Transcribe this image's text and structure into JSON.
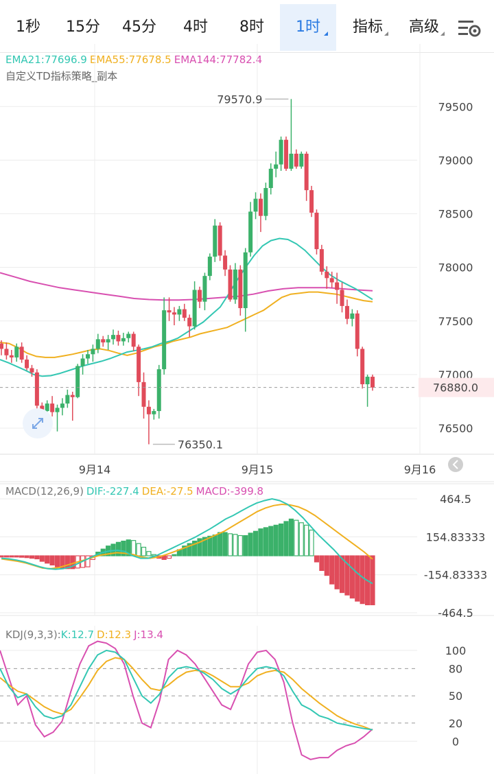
{
  "tabs": [
    {
      "label": "1秒",
      "active": false,
      "dropdown": false
    },
    {
      "label": "15分",
      "active": false,
      "dropdown": false
    },
    {
      "label": "45分",
      "active": false,
      "dropdown": false
    },
    {
      "label": "4时",
      "active": false,
      "dropdown": false
    },
    {
      "label": "8时",
      "active": false,
      "dropdown": false
    },
    {
      "label": "1时",
      "active": true,
      "dropdown": true
    },
    {
      "label": "指标",
      "active": false,
      "dropdown": true
    },
    {
      "label": "高级",
      "active": false,
      "dropdown": true
    }
  ],
  "settings_icon": "settings-sliders-icon",
  "main_legend": {
    "ema21": "EMA21:77696.9",
    "ema55": "EMA55:77678.5",
    "ema144": "EMA144:77782.4",
    "strategy": "自定义TD指标策略_副本"
  },
  "macd_legend": {
    "title": "MACD(12,26,9)",
    "dif": "DIF:-227.4",
    "dea": "DEA:-27.5",
    "macd": "MACD:-399.8"
  },
  "kdj_legend": {
    "title": "KDJ(9,3,3):",
    "k": "K:12.7",
    "d": "D:12.3",
    "j": "J:13.4"
  },
  "colors": {
    "up": "#3bb16a",
    "down": "#e04b5a",
    "ema21": "#33c7b3",
    "ema55": "#f0b020",
    "ema144": "#d84fb0",
    "axis": "#444444",
    "grid": "#ececec"
  },
  "chart_data": [
    {
      "type": "candlestick",
      "x_ticks": [
        "9月14",
        "9月15",
        "9月16"
      ],
      "y_ticks": [
        76500,
        77000,
        77500,
        78000,
        78500,
        79000,
        79500
      ],
      "ylim": [
        76270,
        79700
      ],
      "high_label": "79570.9",
      "low_label": "76350.1",
      "last_price": 76880.0,
      "last_price_label": "76880.0",
      "candles": [
        [
          77290,
          77320,
          77180,
          77240
        ],
        [
          77240,
          77300,
          77140,
          77180
        ],
        [
          77180,
          77230,
          77110,
          77160
        ],
        [
          77160,
          77290,
          77120,
          77260
        ],
        [
          77260,
          77300,
          77110,
          77140
        ],
        [
          77140,
          77180,
          77040,
          77060
        ],
        [
          77060,
          77090,
          76980,
          77020
        ],
        [
          77020,
          77050,
          76640,
          76710
        ],
        [
          76710,
          76740,
          76560,
          76660
        ],
        [
          76660,
          76760,
          76610,
          76730
        ],
        [
          76730,
          76800,
          76610,
          76650
        ],
        [
          76650,
          76720,
          76470,
          76690
        ],
        [
          76690,
          76780,
          76620,
          76730
        ],
        [
          76730,
          76860,
          76690,
          76810
        ],
        [
          76810,
          76840,
          76570,
          76790
        ],
        [
          76790,
          77100,
          76780,
          77080
        ],
        [
          77080,
          77190,
          77000,
          77150
        ],
        [
          77150,
          77230,
          77100,
          77190
        ],
        [
          77190,
          77280,
          77120,
          77240
        ],
        [
          77240,
          77380,
          77200,
          77330
        ],
        [
          77330,
          77360,
          77260,
          77300
        ],
        [
          77300,
          77370,
          77230,
          77330
        ],
        [
          77330,
          77420,
          77280,
          77370
        ],
        [
          77370,
          77410,
          77270,
          77310
        ],
        [
          77310,
          77390,
          77270,
          77340
        ],
        [
          77340,
          77400,
          77300,
          77380
        ],
        [
          77380,
          77400,
          77220,
          77260
        ],
        [
          77260,
          77280,
          76800,
          76930
        ],
        [
          76930,
          77020,
          76590,
          76700
        ],
        [
          76700,
          76760,
          76350,
          76630
        ],
        [
          76630,
          76680,
          76580,
          76660
        ],
        [
          76660,
          77090,
          76590,
          77050
        ],
        [
          77050,
          77720,
          77000,
          77600
        ],
        [
          77600,
          77720,
          77500,
          77580
        ],
        [
          77580,
          77630,
          77460,
          77560
        ],
        [
          77560,
          77640,
          77500,
          77610
        ],
        [
          77610,
          77660,
          77500,
          77530
        ],
        [
          77530,
          77560,
          77350,
          77450
        ],
        [
          77450,
          77870,
          77420,
          77790
        ],
        [
          77790,
          77820,
          77620,
          77680
        ],
        [
          77680,
          77950,
          77600,
          77920
        ],
        [
          77920,
          78130,
          77880,
          78100
        ],
        [
          78100,
          78450,
          78050,
          78390
        ],
        [
          78390,
          78420,
          78060,
          78110
        ],
        [
          78110,
          78160,
          77920,
          77980
        ],
        [
          77980,
          78020,
          77680,
          77700
        ],
        [
          77700,
          78040,
          77660,
          77980
        ],
        [
          77980,
          78020,
          77550,
          77620
        ],
        [
          77620,
          78180,
          77400,
          78140
        ],
        [
          78140,
          78610,
          78100,
          78520
        ],
        [
          78520,
          78700,
          78450,
          78640
        ],
        [
          78640,
          78690,
          78330,
          78480
        ],
        [
          78480,
          78790,
          78440,
          78740
        ],
        [
          78740,
          78970,
          78680,
          78920
        ],
        [
          78920,
          79080,
          78840,
          78960
        ],
        [
          78960,
          79220,
          78900,
          79190
        ],
        [
          79190,
          79220,
          78900,
          78920
        ],
        [
          78920,
          79570,
          78900,
          79060
        ],
        [
          79060,
          79100,
          78920,
          78940
        ],
        [
          78940,
          79080,
          78920,
          79060
        ],
        [
          79060,
          79080,
          78620,
          78720
        ],
        [
          78720,
          78760,
          78470,
          78510
        ],
        [
          78510,
          78540,
          78120,
          78170
        ],
        [
          78170,
          78210,
          77930,
          77960
        ],
        [
          77960,
          78010,
          77800,
          77900
        ],
        [
          77900,
          77960,
          77810,
          77860
        ],
        [
          77860,
          77950,
          77660,
          77790
        ],
        [
          77790,
          77860,
          77580,
          77640
        ],
        [
          77640,
          77700,
          77470,
          77520
        ],
        [
          77520,
          77610,
          77450,
          77570
        ],
        [
          77570,
          77600,
          77170,
          77240
        ],
        [
          77240,
          77260,
          76870,
          76910
        ],
        [
          76910,
          77000,
          76700,
          76980
        ],
        [
          76980,
          77000,
          76850,
          76880
        ]
      ],
      "ema21": [
        77140,
        77110,
        77075,
        77040,
        77000,
        76985,
        76990,
        77010,
        77035,
        77060,
        77085,
        77105,
        77125,
        77150,
        77180,
        77210,
        77225,
        77240,
        77260,
        77290,
        77310,
        77340,
        77390,
        77440,
        77490,
        77560,
        77630,
        77750,
        77880,
        78000,
        78110,
        78200,
        78250,
        78270,
        78260,
        78220,
        78160,
        78080,
        78000,
        77930,
        77880,
        77840,
        77800,
        77750,
        77700
      ],
      "ema55": [
        77300,
        77290,
        77250,
        77200,
        77170,
        77160,
        77160,
        77175,
        77190,
        77210,
        77230,
        77240,
        77225,
        77200,
        77180,
        77200,
        77230,
        77260,
        77280,
        77310,
        77330,
        77350,
        77380,
        77400,
        77420,
        77440,
        77480,
        77520,
        77560,
        77600,
        77660,
        77720,
        77750,
        77760,
        77770,
        77770,
        77760,
        77750,
        77730,
        77710,
        77690,
        77680
      ],
      "ema144": [
        77950,
        77910,
        77870,
        77840,
        77810,
        77790,
        77770,
        77750,
        77730,
        77710,
        77700,
        77695,
        77695,
        77700,
        77710,
        77720,
        77730,
        77750,
        77780,
        77800,
        77810,
        77810,
        77810,
        77800,
        77790,
        77782
      ]
    },
    {
      "type": "macd",
      "y_ticks": [
        464.5,
        154.83333,
        -154.83333,
        -464.5
      ],
      "y_tick_labels": [
        "464.5",
        "154.83333",
        "-154.83333",
        "-464.5"
      ],
      "ylim": [
        -560,
        560
      ],
      "hist": [
        -10,
        -10,
        -10,
        -10,
        -12,
        -15,
        -20,
        -25,
        -45,
        -60,
        -75,
        -90,
        -100,
        -105,
        -105,
        -100,
        -95,
        -90,
        -30,
        30,
        55,
        80,
        95,
        110,
        120,
        130,
        125,
        100,
        70,
        35,
        10,
        -20,
        -30,
        -20,
        10,
        50,
        80,
        100,
        120,
        140,
        150,
        160,
        170,
        190,
        190,
        180,
        175,
        165,
        165,
        185,
        200,
        220,
        230,
        240,
        250,
        260,
        280,
        300,
        290,
        270,
        250,
        210,
        -50,
        -120,
        -160,
        -230,
        -270,
        -300,
        -320,
        -345,
        -370,
        -390,
        -400,
        -400
      ],
      "dif": [
        -20,
        -25,
        -35,
        -50,
        -70,
        -90,
        -105,
        -110,
        -105,
        -90,
        -60,
        -30,
        0,
        25,
        40,
        45,
        35,
        0,
        -20,
        -20,
        0,
        30,
        60,
        90,
        120,
        150,
        185,
        220,
        260,
        300,
        330,
        365,
        400,
        430,
        450,
        465,
        450,
        420,
        370,
        310,
        240,
        170,
        110,
        50,
        -20,
        -80,
        -140,
        -190,
        -227
      ],
      "dea": [
        -25,
        -35,
        -45,
        -60,
        -80,
        -100,
        -105,
        -95,
        -75,
        -55,
        -35,
        -15,
        5,
        15,
        25,
        20,
        10,
        -10,
        -20,
        -10,
        10,
        35,
        60,
        85,
        110,
        140,
        170,
        200,
        240,
        280,
        320,
        360,
        390,
        410,
        420,
        415,
        400,
        370,
        330,
        280,
        230,
        180,
        130,
        80,
        30,
        -27.5
      ]
    },
    {
      "type": "kdj",
      "y_ticks": [
        100,
        80,
        50,
        20,
        0
      ],
      "dashed": [
        80,
        50,
        20
      ],
      "ylim": [
        -30,
        115
      ],
      "k": [
        80,
        60,
        48,
        52,
        38,
        28,
        25,
        28,
        40,
        60,
        80,
        95,
        100,
        98,
        90,
        70,
        50,
        42,
        52,
        70,
        80,
        82,
        80,
        75,
        68,
        58,
        52,
        58,
        70,
        80,
        82,
        80,
        72,
        55,
        40,
        35,
        28,
        25,
        20,
        18,
        16,
        14,
        12.7
      ],
      "d": [
        70,
        62,
        55,
        52,
        45,
        38,
        33,
        30,
        35,
        48,
        62,
        78,
        88,
        92,
        90,
        80,
        68,
        58,
        56,
        62,
        70,
        76,
        78,
        77,
        72,
        66,
        60,
        60,
        64,
        72,
        76,
        78,
        76,
        68,
        58,
        50,
        42,
        35,
        28,
        23,
        19,
        16,
        12.3
      ],
      "j": [
        100,
        70,
        40,
        50,
        18,
        5,
        10,
        22,
        55,
        85,
        105,
        110,
        108,
        102,
        85,
        50,
        20,
        15,
        45,
        90,
        100,
        95,
        85,
        70,
        55,
        40,
        35,
        58,
        85,
        98,
        100,
        90,
        65,
        20,
        -15,
        -20,
        -18,
        -18,
        -10,
        -5,
        -2,
        5,
        13.4
      ]
    }
  ]
}
